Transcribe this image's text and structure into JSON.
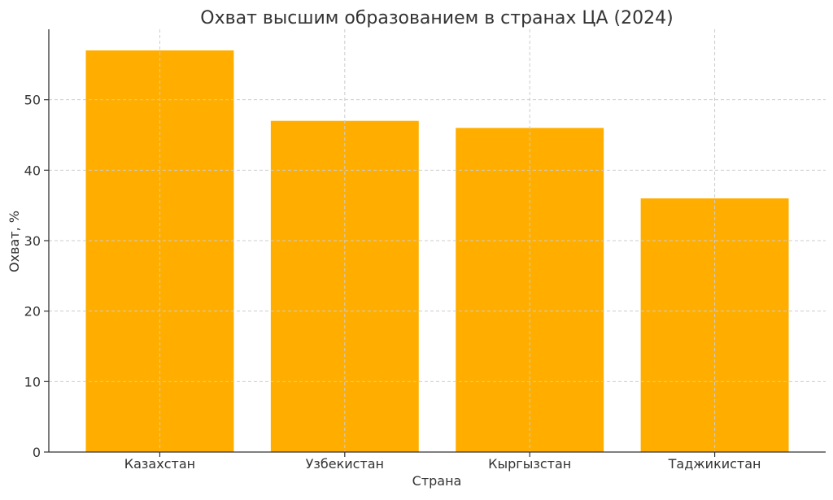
{
  "chart_data": {
    "type": "bar",
    "title": "Охват высшим образованием в странах ЦА (2024)",
    "xlabel": "Страна",
    "ylabel": "Охват, %",
    "categories": [
      "Казахстан",
      "Узбекистан",
      "Кыргызстан",
      "Таджикистан"
    ],
    "values": [
      57,
      47,
      46,
      36
    ],
    "ylim": [
      0,
      60
    ],
    "yticks": [
      0,
      10,
      20,
      30,
      40,
      50
    ],
    "grid": true,
    "bar_color": "#FFAE00"
  }
}
